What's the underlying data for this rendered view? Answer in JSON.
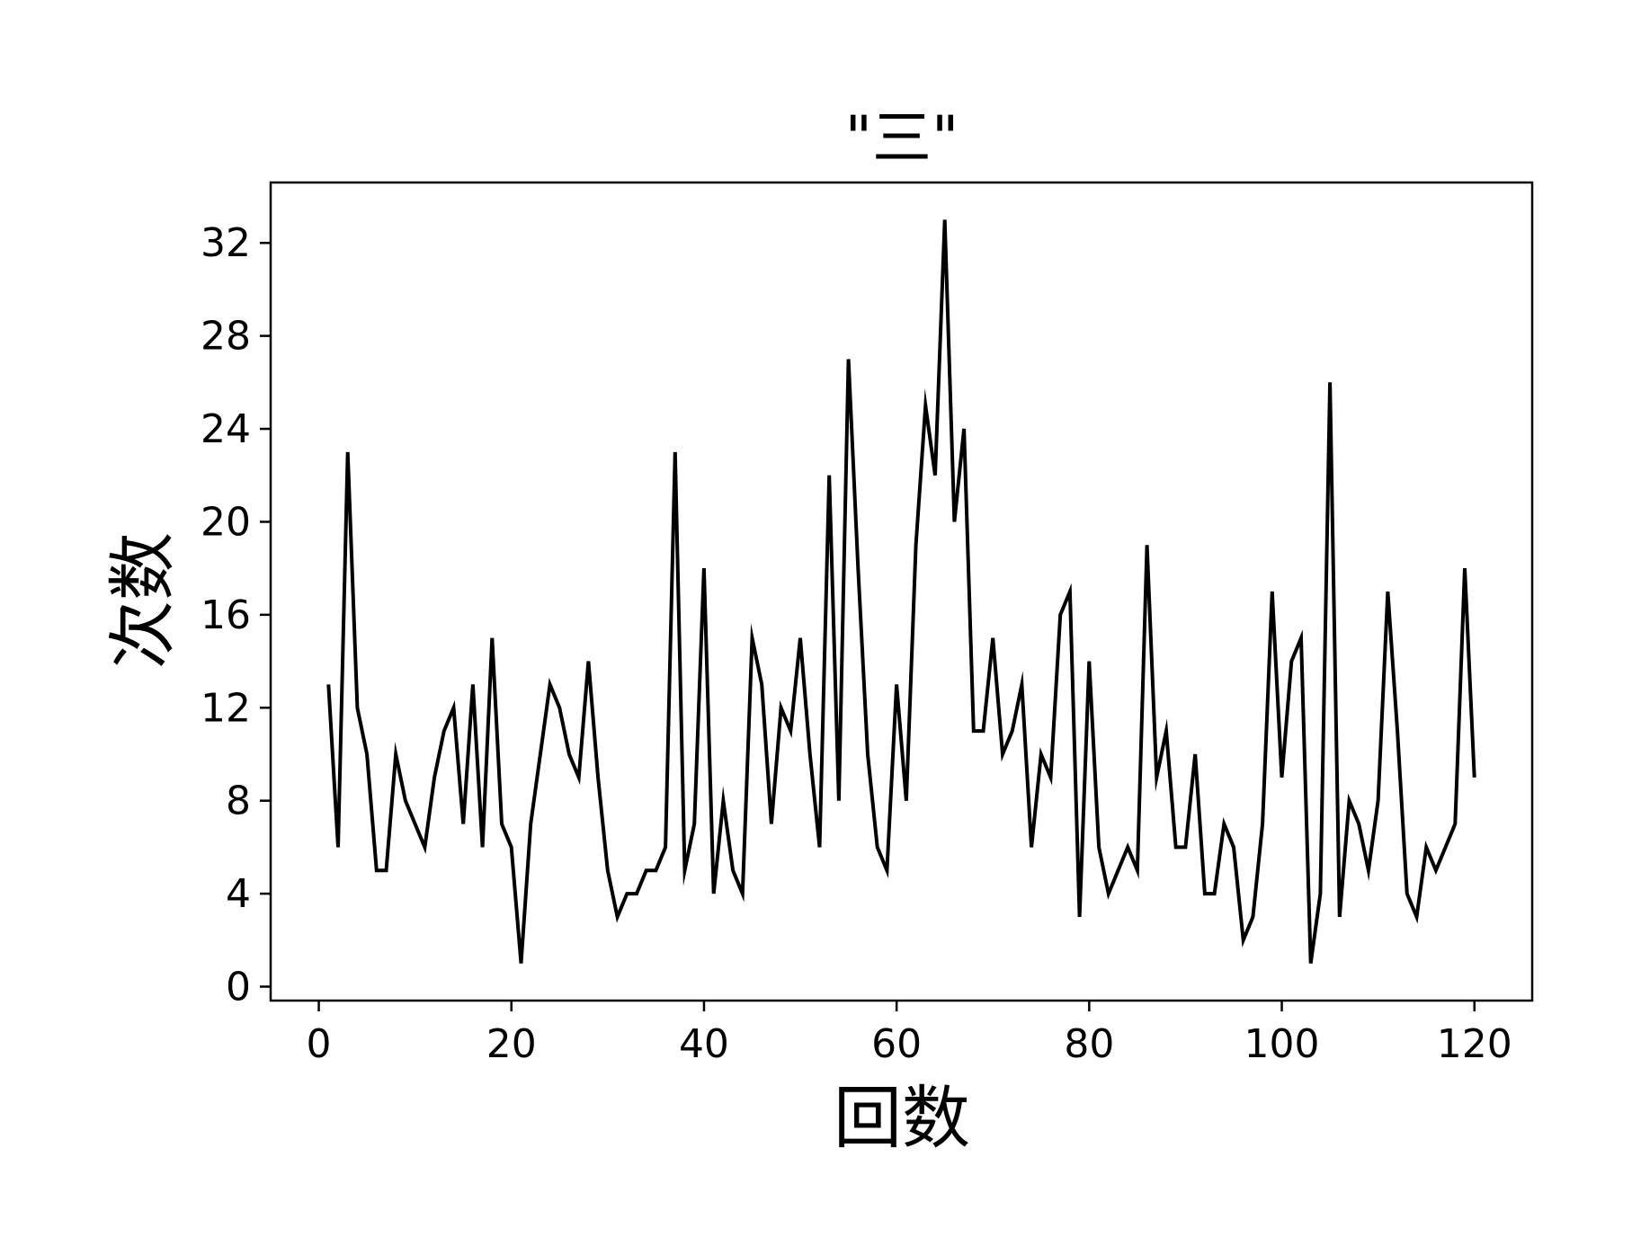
{
  "chart_data": {
    "type": "line",
    "title": "\"三\"",
    "xlabel": "回数",
    "ylabel": "次数",
    "xlim": [
      -5,
      126
    ],
    "ylim": [
      -0.6,
      34.6
    ],
    "xticks": [
      0,
      20,
      40,
      60,
      80,
      100,
      120
    ],
    "yticks": [
      0,
      4,
      8,
      12,
      16,
      20,
      24,
      28,
      32
    ],
    "grid": false,
    "series": [
      {
        "name": "三",
        "color": "#000000",
        "x": [
          1,
          2,
          3,
          4,
          5,
          6,
          7,
          8,
          9,
          10,
          11,
          12,
          13,
          14,
          15,
          16,
          17,
          18,
          19,
          20,
          21,
          22,
          23,
          24,
          25,
          26,
          27,
          28,
          29,
          30,
          31,
          32,
          33,
          34,
          35,
          36,
          37,
          38,
          39,
          40,
          41,
          42,
          43,
          44,
          45,
          46,
          47,
          48,
          49,
          50,
          51,
          52,
          53,
          54,
          55,
          56,
          57,
          58,
          59,
          60,
          61,
          62,
          63,
          64,
          65,
          66,
          67,
          68,
          69,
          70,
          71,
          72,
          73,
          74,
          75,
          76,
          77,
          78,
          79,
          80,
          81,
          82,
          83,
          84,
          85,
          86,
          87,
          88,
          89,
          90,
          91,
          92,
          93,
          94,
          95,
          96,
          97,
          98,
          99,
          100,
          101,
          102,
          103,
          104,
          105,
          106,
          107,
          108,
          109,
          110,
          111,
          112,
          113,
          114,
          115,
          116,
          117,
          118,
          119,
          120
        ],
        "values": [
          13,
          6,
          23,
          12,
          10,
          5,
          5,
          10,
          8,
          7,
          6,
          9,
          11,
          12,
          7,
          13,
          6,
          15,
          7,
          6,
          1,
          7,
          10,
          13,
          12,
          10,
          9,
          14,
          9,
          5,
          3,
          4,
          4,
          5,
          5,
          6,
          23,
          5,
          7,
          18,
          4,
          8,
          5,
          4,
          15,
          13,
          7,
          12,
          11,
          15,
          10,
          6,
          22,
          8,
          27,
          18,
          10,
          6,
          5,
          13,
          8,
          19,
          25,
          22,
          33,
          20,
          24,
          11,
          11,
          15,
          10,
          11,
          13,
          6,
          10,
          9,
          16,
          17,
          3,
          14,
          6,
          4,
          5,
          6,
          5,
          19,
          9,
          11,
          6,
          6,
          10,
          4,
          4,
          7,
          6,
          2,
          3,
          7,
          17,
          9,
          14,
          15,
          1,
          4,
          26,
          3,
          8,
          7,
          5,
          8,
          17,
          11,
          4,
          3,
          6,
          5,
          6,
          7,
          18,
          9
        ]
      }
    ]
  }
}
